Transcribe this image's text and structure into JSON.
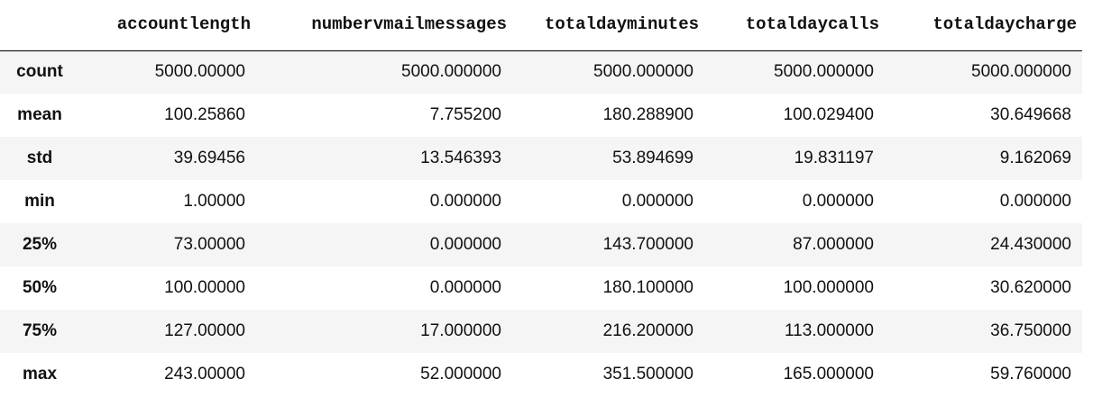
{
  "table": {
    "index_header": "",
    "columns": [
      "accountlength",
      "numbervmailmessages",
      "totaldayminutes",
      "totaldaycalls",
      "totaldaycharge"
    ],
    "rows": [
      {
        "label": "count",
        "values": [
          "5000.00000",
          "5000.000000",
          "5000.000000",
          "5000.000000",
          "5000.000000"
        ]
      },
      {
        "label": "mean",
        "values": [
          "100.25860",
          "7.755200",
          "180.288900",
          "100.029400",
          "30.649668"
        ]
      },
      {
        "label": "std",
        "values": [
          "39.69456",
          "13.546393",
          "53.894699",
          "19.831197",
          "9.162069"
        ]
      },
      {
        "label": "min",
        "values": [
          "1.00000",
          "0.000000",
          "0.000000",
          "0.000000",
          "0.000000"
        ]
      },
      {
        "label": "25%",
        "values": [
          "73.00000",
          "0.000000",
          "143.700000",
          "87.000000",
          "24.430000"
        ]
      },
      {
        "label": "50%",
        "values": [
          "100.00000",
          "0.000000",
          "180.100000",
          "100.000000",
          "30.620000"
        ]
      },
      {
        "label": "75%",
        "values": [
          "127.00000",
          "17.000000",
          "216.200000",
          "113.000000",
          "36.750000"
        ]
      },
      {
        "label": "max",
        "values": [
          "243.00000",
          "52.000000",
          "351.500000",
          "165.000000",
          "59.760000"
        ]
      }
    ]
  }
}
